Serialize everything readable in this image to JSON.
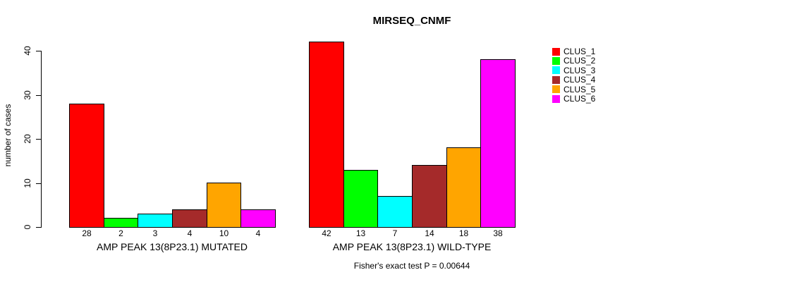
{
  "chart_data": {
    "type": "bar",
    "title": "MIRSEQ_CNMF",
    "ylabel": "number of cases",
    "xlabel": "",
    "ylim": [
      0,
      42
    ],
    "yticks": [
      0,
      10,
      20,
      30,
      40
    ],
    "grid": false,
    "legend_position": "top-right-outside",
    "series_labels": [
      "CLUS_1",
      "CLUS_2",
      "CLUS_3",
      "CLUS_4",
      "CLUS_5",
      "CLUS_6"
    ],
    "series_colors": [
      "#ff0000",
      "#00ff00",
      "#00ffff",
      "#a52a2a",
      "#ffa500",
      "#ff00ff"
    ],
    "groups": [
      {
        "label": "AMP PEAK 13(8P23.1) MUTATED",
        "values": [
          28,
          2,
          3,
          4,
          10,
          4
        ]
      },
      {
        "label": "AMP PEAK 13(8P23.1) WILD-TYPE",
        "values": [
          42,
          13,
          7,
          14,
          18,
          38
        ]
      }
    ],
    "annotation": "Fisher's exact test P = 0.00644"
  }
}
